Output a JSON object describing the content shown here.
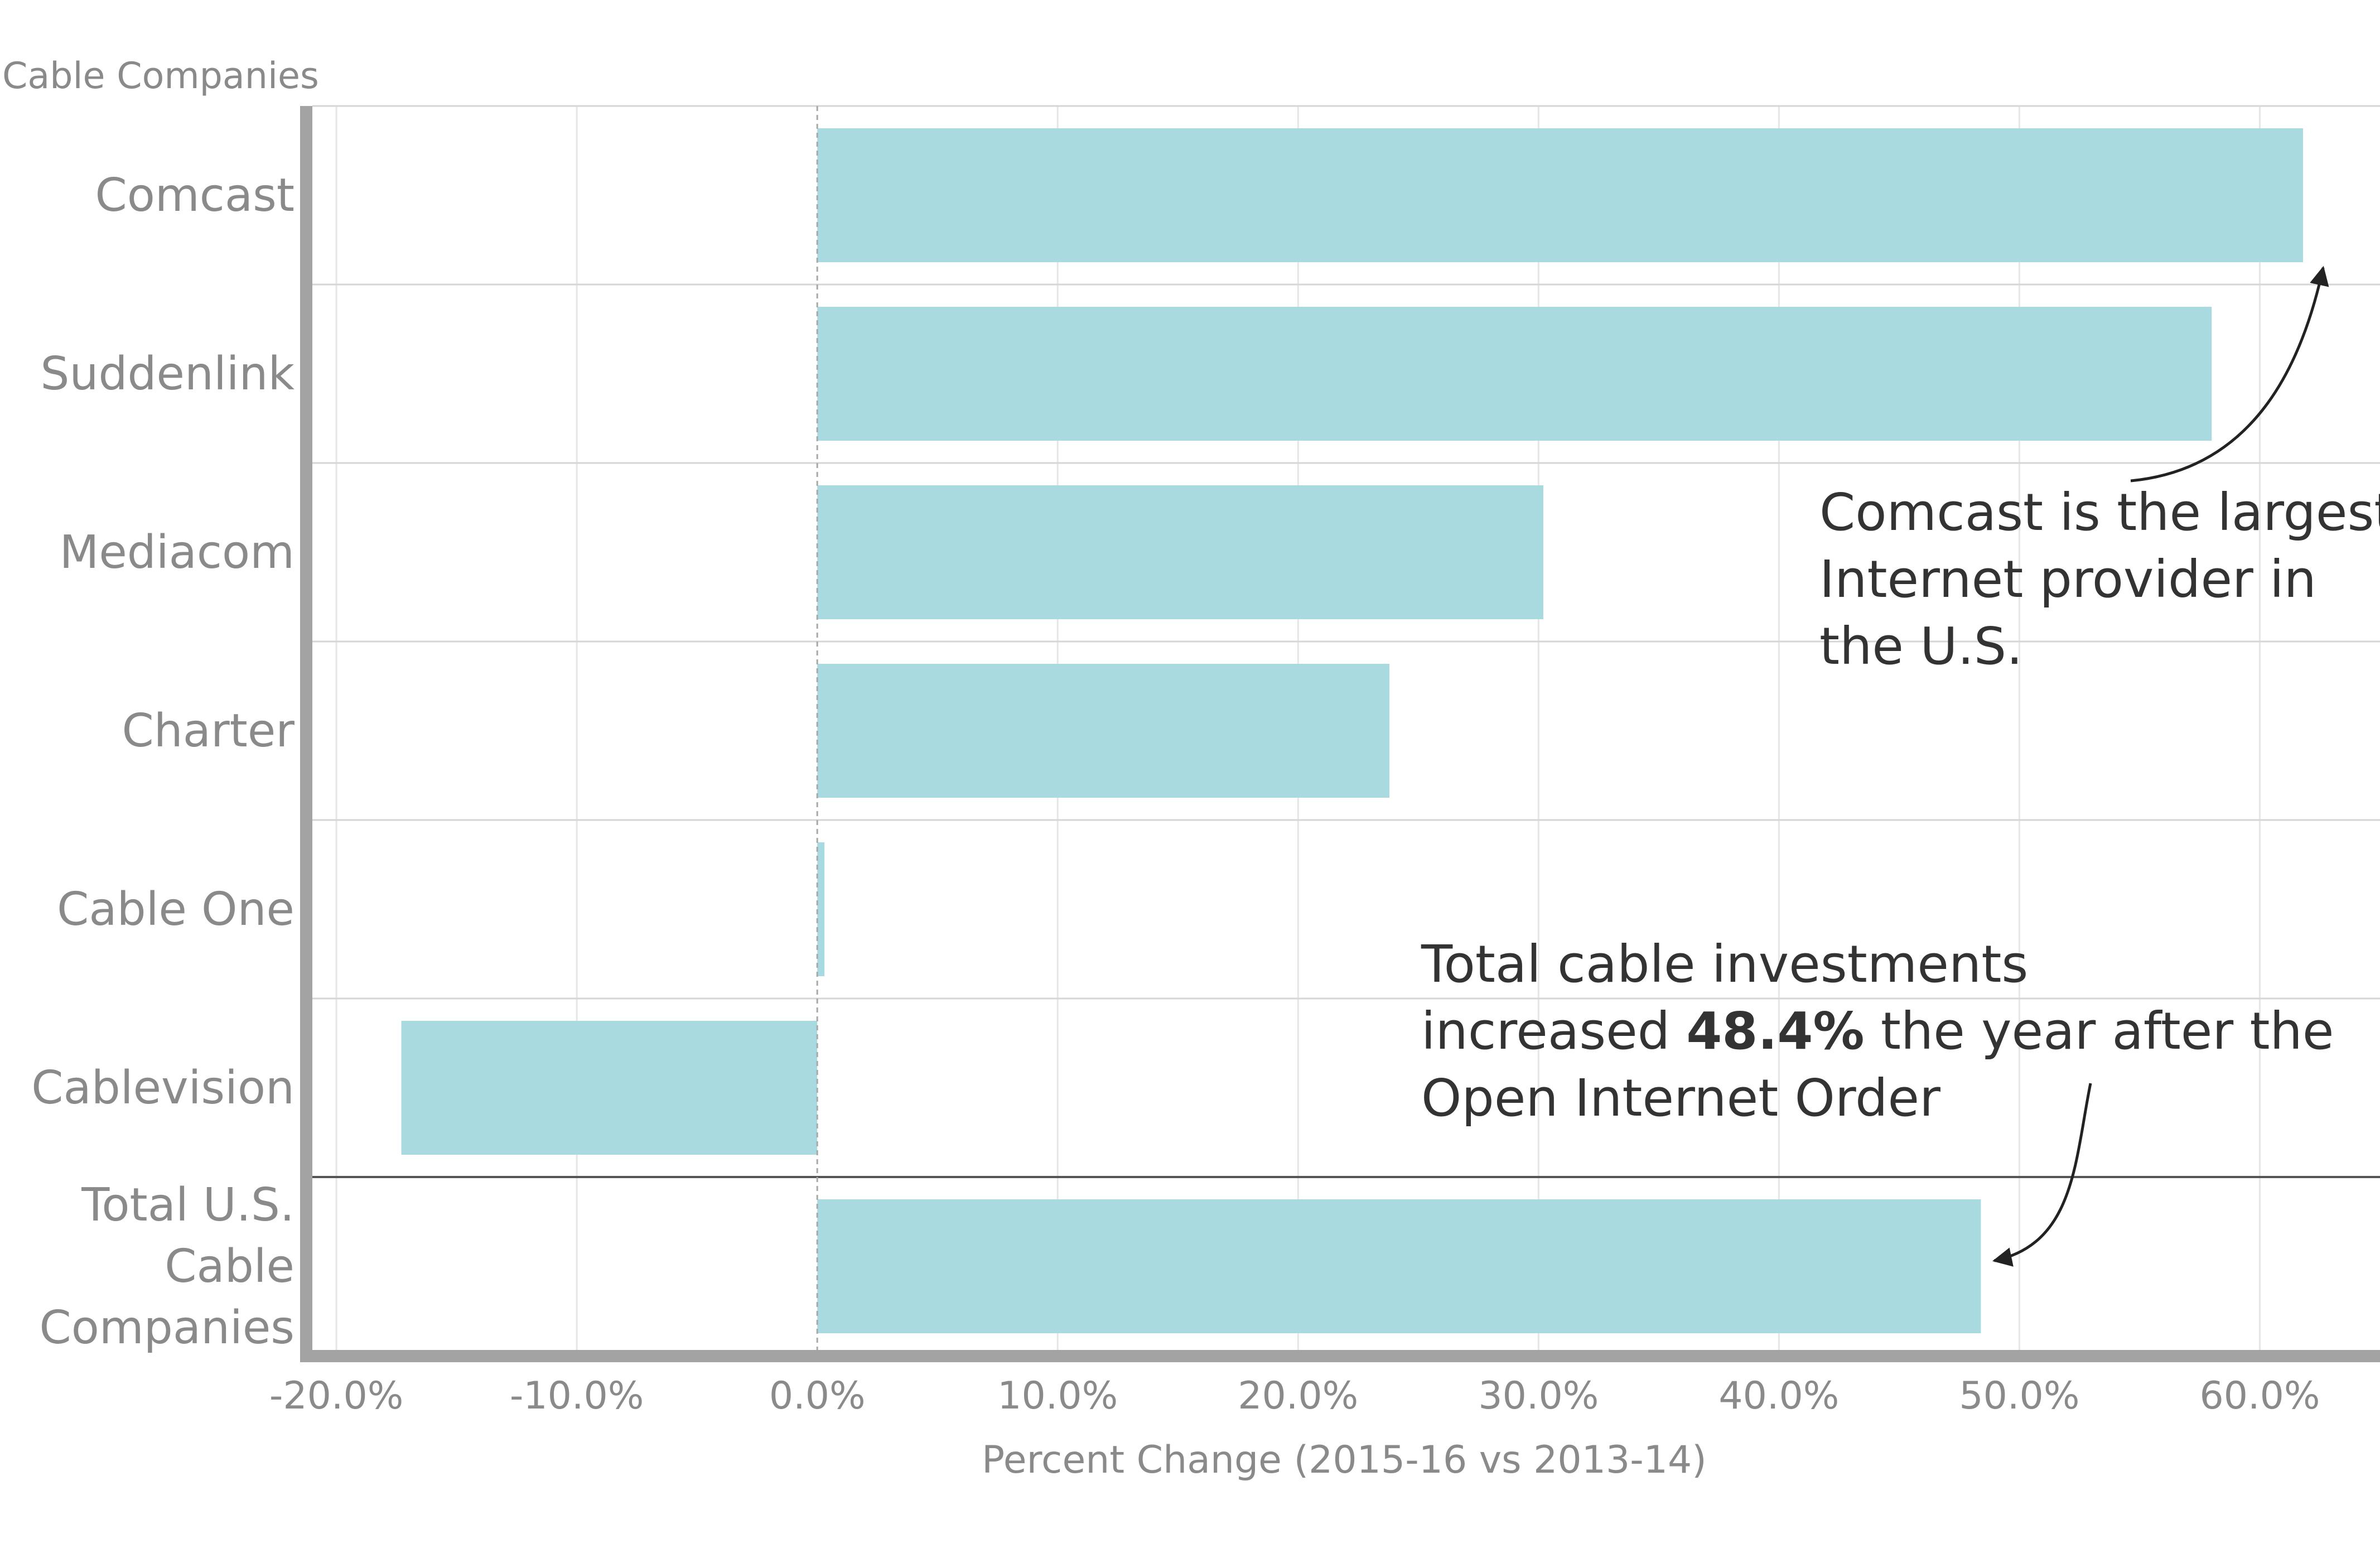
{
  "chart_data": {
    "type": "bar",
    "orientation": "horizontal",
    "axis_header": "Cable Companies",
    "categories": [
      "Comcast",
      "Suddenlink",
      "Mediacom",
      "Charter",
      "Cable One",
      "Cablevision",
      "Total U.S. Cable Companies"
    ],
    "category_lines": [
      [
        "Comcast"
      ],
      [
        "Suddenlink"
      ],
      [
        "Mediacom"
      ],
      [
        "Charter"
      ],
      [
        "Cable One"
      ],
      [
        "Cablevision"
      ],
      [
        "Total U.S.",
        "Cable",
        "Companies"
      ]
    ],
    "values": [
      61.8,
      58.0,
      30.2,
      23.8,
      0.3,
      -17.3,
      48.4
    ],
    "xlabel": "Percent Change (2015-16 vs 2013-14)",
    "xlim": [
      -21.0,
      65.0
    ],
    "xticks": [
      -20,
      -10,
      0,
      10,
      20,
      30,
      40,
      50,
      60
    ],
    "xtick_labels": [
      "-20.0%",
      "-10.0%",
      "0.0%",
      "10.0%",
      "20.0%",
      "30.0%",
      "40.0%",
      "50.0%",
      "60.0%"
    ],
    "bar_color": "#a9dadf",
    "grid": true,
    "annotations": [
      {
        "name": "comcast-note",
        "target": "Comcast",
        "lines": [
          [
            {
              "text": "Comcast is the largest"
            }
          ],
          [
            {
              "text": "Internet provider in"
            }
          ],
          [
            {
              "text": "the U.S."
            }
          ]
        ]
      },
      {
        "name": "total-note",
        "target": "Total U.S. Cable Companies",
        "lines": [
          [
            {
              "text": "Total cable investments"
            }
          ],
          [
            {
              "text": "increased "
            },
            {
              "text": "48.4%",
              "bold": true
            },
            {
              "text": " the year after the"
            }
          ],
          [
            {
              "text": "Open Internet Order"
            }
          ]
        ]
      }
    ]
  }
}
